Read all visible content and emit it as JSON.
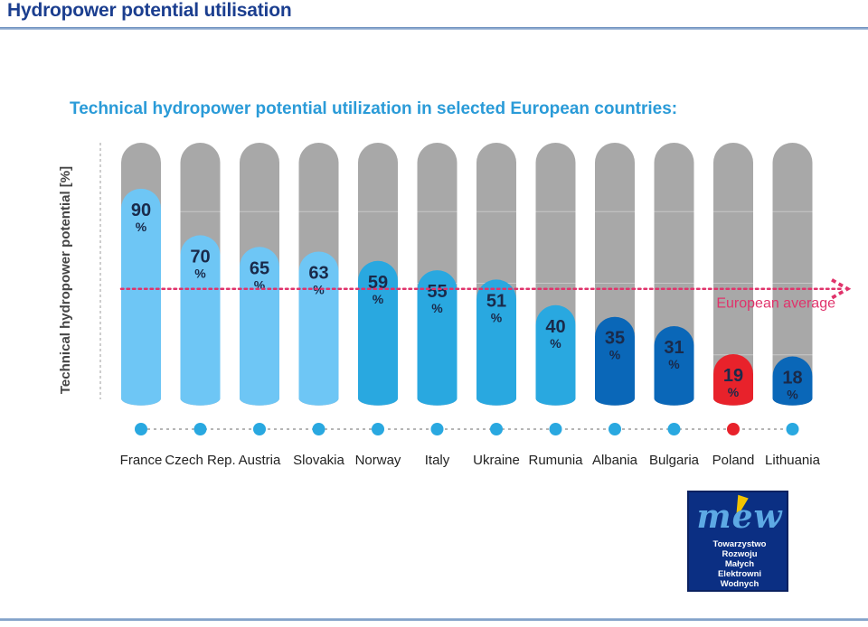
{
  "header": {
    "title": "Hydropower potential utilisation"
  },
  "chart_data": {
    "type": "bar",
    "title": "Technical hydropower potential utilization in selected European countries:",
    "ylabel": "Technical hydropower potential [%]",
    "xlabel": "",
    "ylim": [
      0,
      100
    ],
    "unit": "%",
    "categories": [
      "France",
      "Czech Rep.",
      "Austria",
      "Slovakia",
      "Norway",
      "Italy",
      "Ukraine",
      "Rumunia",
      "Albania",
      "Bulgaria",
      "Poland",
      "Lithuania"
    ],
    "values": [
      90,
      70,
      65,
      63,
      59,
      55,
      51,
      40,
      35,
      31,
      19,
      18
    ],
    "bar_colors": [
      "#6ec6f5",
      "#6ec6f5",
      "#6ec6f5",
      "#6ec6f5",
      "#29a8e0",
      "#29a8e0",
      "#29a8e0",
      "#29a8e0",
      "#0a67b8",
      "#0a67b8",
      "#e8222b",
      "#0a67b8"
    ],
    "dot_colors": [
      "#29a8e0",
      "#29a8e0",
      "#29a8e0",
      "#29a8e0",
      "#29a8e0",
      "#29a8e0",
      "#29a8e0",
      "#29a8e0",
      "#29a8e0",
      "#29a8e0",
      "#e8222b",
      "#29a8e0"
    ],
    "background_color": "#a8a8a8",
    "reference_line": {
      "label": "European average",
      "value": 47,
      "color": "#e0336b"
    },
    "grid": false,
    "legend": "none"
  },
  "logo": {
    "mark": "mew",
    "lines": [
      "Towarzystwo",
      "Rozwoju",
      "Małych",
      "Elektrowni",
      "Wodnych"
    ]
  }
}
